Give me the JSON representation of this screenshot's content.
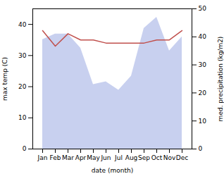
{
  "chart_data": {
    "type": "line",
    "categories": [
      "Jan",
      "Feb",
      "Mar",
      "Apr",
      "May",
      "Jun",
      "Jul",
      "Aug",
      "Sep",
      "Oct",
      "Nov",
      "Dec"
    ],
    "xlabel": "date (month)",
    "ylabel": "max temp (C)",
    "y2label": "med. precipitation (kg/m2)",
    "ylim": [
      0,
      45
    ],
    "yticks": [
      0,
      10,
      20,
      30,
      40
    ],
    "y2lim": [
      0,
      50
    ],
    "y2ticks": [
      0,
      10,
      20,
      30,
      40,
      50
    ],
    "grid": false,
    "series": [
      {
        "type": "line",
        "color": "#c0504d",
        "values": [
          38,
          33,
          37,
          35,
          35,
          34,
          34,
          34,
          34,
          35,
          35,
          38
        ]
      },
      {
        "type": "area",
        "color": "#b0bce8",
        "axis": "y2",
        "values": [
          39,
          41,
          41,
          36,
          23,
          24,
          21,
          26,
          43,
          47,
          35,
          40
        ]
      }
    ]
  }
}
